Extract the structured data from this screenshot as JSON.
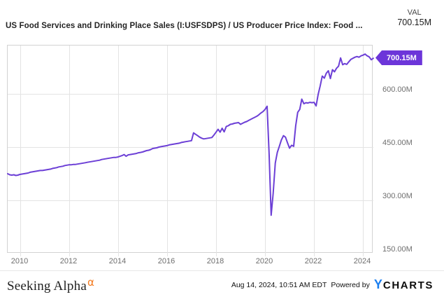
{
  "header": {
    "title": "US Food Services and Drinking Place Sales (I:USFSDPS) / US Producer Price Index: Food ...",
    "val_label": "VAL",
    "val_value": "700.15M"
  },
  "chart_data": {
    "type": "line",
    "title": "US Food Services and Drinking Place Sales (I:USFSDPS) / US Producer Price Index: Food ...",
    "line_color": "#6c3fd6",
    "badge_color": "#6c35d9",
    "grid_color": "#e3e3e3",
    "border_color": "#d2d2d2",
    "grid": true,
    "legend": "none",
    "xlim": [
      2009.5,
      2024.42
    ],
    "ylim": [
      150,
      736
    ],
    "x_ticks": [
      2010,
      2012,
      2014,
      2016,
      2018,
      2020,
      2022,
      2024
    ],
    "y_ticks": [
      {
        "value": 600,
        "label": "600.00M"
      },
      {
        "value": 450,
        "label": "450.00M"
      },
      {
        "value": 300,
        "label": "300.00M"
      },
      {
        "value": 150,
        "label": "150.00M"
      }
    ],
    "last_value_label": "700.15M",
    "series": [
      {
        "name": "US Food Services and Drinking Place Sales / US Producer Price Index: Food",
        "unit": "M",
        "frequency": "monthly",
        "start_decimal_year": 2009.5,
        "values": [
          375,
          372,
          371,
          372,
          370,
          371,
          373,
          374,
          375,
          376,
          377,
          379,
          380,
          381,
          382,
          383,
          384,
          384,
          385,
          386,
          387,
          388,
          390,
          391,
          392,
          394,
          395,
          396,
          398,
          399,
          400,
          400,
          401,
          401,
          402,
          403,
          404,
          405,
          406,
          407,
          408,
          409,
          410,
          411,
          412,
          413,
          415,
          416,
          417,
          418,
          419,
          420,
          421,
          421,
          422,
          424,
          426,
          429,
          424,
          428,
          429,
          430,
          431,
          432,
          434,
          435,
          436,
          438,
          440,
          441,
          443,
          446,
          447,
          448,
          450,
          451,
          452,
          453,
          454,
          456,
          457,
          458,
          459,
          460,
          461,
          463,
          464,
          465,
          466,
          467,
          468,
          490,
          486,
          482,
          478,
          475,
          473,
          474,
          475,
          476,
          477,
          484,
          492,
          500,
          492,
          503,
          493,
          508,
          510,
          514,
          515,
          517,
          518,
          519,
          514,
          517,
          520,
          522,
          525,
          528,
          531,
          534,
          537,
          541,
          546,
          550,
          556,
          565,
          430,
          258,
          320,
          405,
          435,
          452,
          470,
          482,
          478,
          462,
          447,
          455,
          452,
          510,
          548,
          556,
          585,
          572,
          575,
          574,
          576,
          575,
          576,
          566,
          598,
          622,
          650,
          644,
          658,
          665,
          643,
          668,
          662,
          672,
          678,
          701,
          682,
          685,
          683,
          690,
          697,
          700,
          703,
          705,
          703,
          707,
          709,
          712,
          707,
          704,
          696,
          700.15
        ]
      }
    ]
  },
  "footer": {
    "brand": "Seeking Alpha",
    "brand_alpha": "α",
    "timestamp": "Aug 14, 2024, 10:51 AM EDT",
    "powered_by": "Powered by",
    "ycharts_mark": "Y",
    "ycharts_name": "CHARTS"
  }
}
